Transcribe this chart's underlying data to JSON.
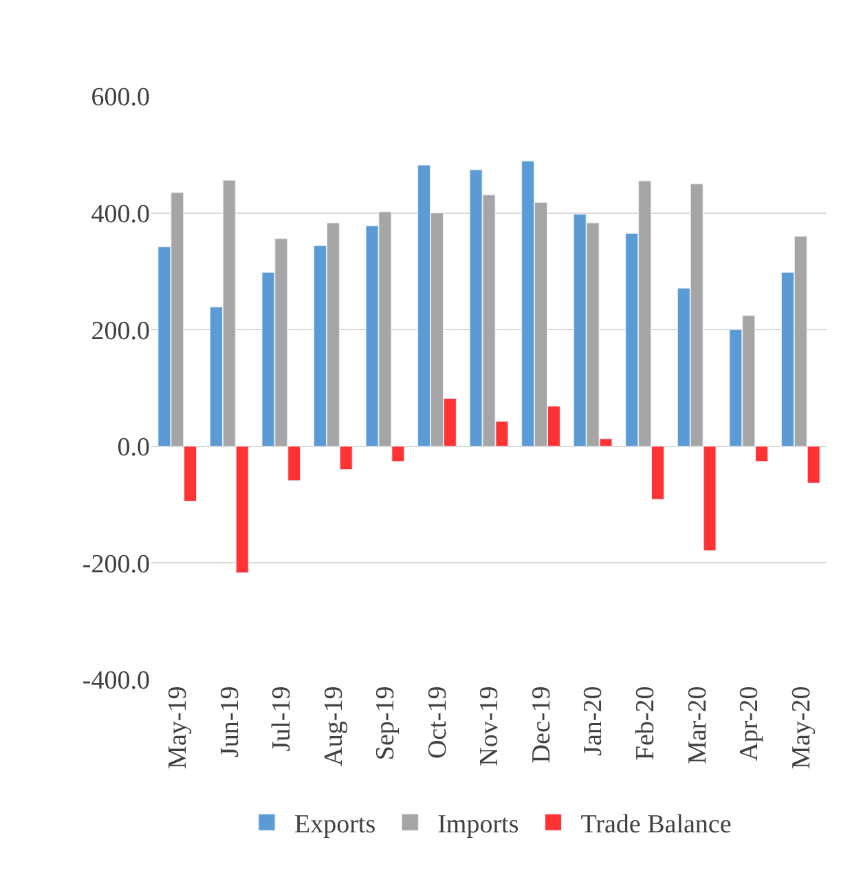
{
  "chart_data": {
    "type": "bar",
    "categories": [
      "May-19",
      "Jun-19",
      "Jul-19",
      "Aug-19",
      "Sep-19",
      "Oct-19",
      "Nov-19",
      "Dec-19",
      "Jan-20",
      "Feb-20",
      "Mar-20",
      "Apr-20",
      "May-20"
    ],
    "series": [
      {
        "name": "Exports",
        "color": "#5b9bd5",
        "values": [
          342,
          239,
          298,
          344,
          378,
          482,
          474,
          489,
          398,
          365,
          271,
          200,
          298
        ]
      },
      {
        "name": "Imports",
        "color": "#a5a5a5",
        "values": [
          435,
          456,
          356,
          383,
          402,
          400,
          431,
          418,
          383,
          455,
          450,
          224,
          360
        ]
      },
      {
        "name": "Trade Balance",
        "color": "#ff3333",
        "values": [
          -94,
          -217,
          -59,
          -40,
          -26,
          82,
          43,
          69,
          13,
          -91,
          -179,
          -26,
          -63
        ]
      }
    ],
    "ylim": [
      -400,
      600
    ],
    "yticks": [
      {
        "value": -400,
        "label": "-400.0"
      },
      {
        "value": -200,
        "label": "-200.0"
      },
      {
        "value": 0,
        "label": "0.0"
      },
      {
        "value": 200,
        "label": "200.0"
      },
      {
        "value": 400,
        "label": "400.0"
      },
      {
        "value": 600,
        "label": "600.0"
      }
    ],
    "grid": "y",
    "legend": "bottom"
  }
}
